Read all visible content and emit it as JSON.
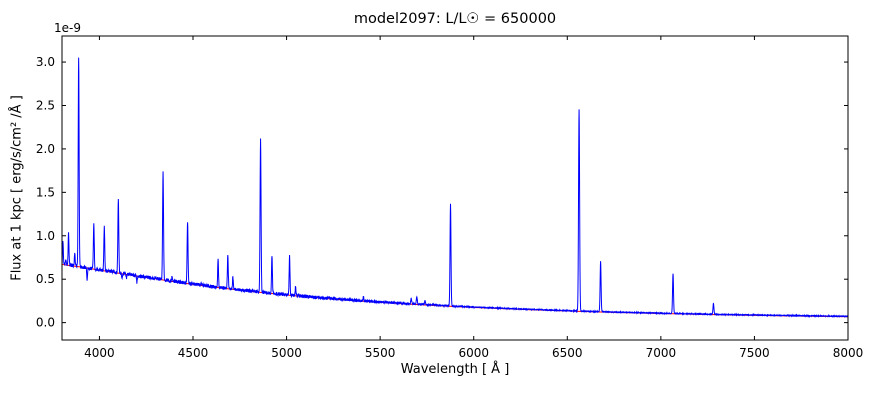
{
  "chart_data": {
    "type": "line",
    "title": "model2097: L/L☉ = 650000",
    "xlabel": "Wavelength [ Å ]",
    "ylabel": "Flux at 1 kpc [ erg/s/cm² /Å ]",
    "offset_text": "1e-9",
    "unit_note": "y values in units of 1e-9 erg/s/cm²/Å",
    "xlim": [
      3800,
      8000
    ],
    "ylim": [
      -0.2,
      3.3
    ],
    "xtick_values": [
      4000,
      4500,
      5000,
      5500,
      6000,
      6500,
      7000,
      7500,
      8000
    ],
    "xtick_labels": [
      "4000",
      "4500",
      "5000",
      "5500",
      "6000",
      "6500",
      "7000",
      "7500",
      "8000"
    ],
    "ytick_values": [
      0.0,
      0.5,
      1.0,
      1.5,
      2.0,
      2.5,
      3.0
    ],
    "ytick_labels": [
      "0.0",
      "0.5",
      "1.0",
      "1.5",
      "2.0",
      "2.5",
      "3.0"
    ],
    "legend": "none",
    "grid": "off",
    "frame_color": "#000000",
    "spectrum_color": "#0000ff",
    "continuum_color": "#ff0000",
    "continuum": [
      [
        3800,
        0.67
      ],
      [
        3900,
        0.64
      ],
      [
        4000,
        0.605
      ],
      [
        4100,
        0.57
      ],
      [
        4200,
        0.535
      ],
      [
        4300,
        0.505
      ],
      [
        4400,
        0.47
      ],
      [
        4500,
        0.44
      ],
      [
        4600,
        0.412
      ],
      [
        4700,
        0.386
      ],
      [
        4800,
        0.362
      ],
      [
        4900,
        0.34
      ],
      [
        5000,
        0.318
      ],
      [
        5100,
        0.298
      ],
      [
        5200,
        0.28
      ],
      [
        5300,
        0.263
      ],
      [
        5400,
        0.248
      ],
      [
        5500,
        0.233
      ],
      [
        5600,
        0.22
      ],
      [
        5700,
        0.208
      ],
      [
        5800,
        0.196
      ],
      [
        5900,
        0.185
      ],
      [
        6000,
        0.175
      ],
      [
        6100,
        0.166
      ],
      [
        6200,
        0.157
      ],
      [
        6300,
        0.149
      ],
      [
        6400,
        0.141
      ],
      [
        6500,
        0.134
      ],
      [
        6600,
        0.127
      ],
      [
        6700,
        0.121
      ],
      [
        6800,
        0.115
      ],
      [
        6900,
        0.11
      ],
      [
        7000,
        0.105
      ],
      [
        7100,
        0.1
      ],
      [
        7200,
        0.096
      ],
      [
        7300,
        0.091
      ],
      [
        7400,
        0.087
      ],
      [
        7500,
        0.084
      ],
      [
        7600,
        0.08
      ],
      [
        7700,
        0.077
      ],
      [
        7800,
        0.074
      ],
      [
        7900,
        0.071
      ],
      [
        8000,
        0.068
      ]
    ],
    "emission_lines": [
      {
        "wavelength": 3805,
        "peak": 0.95,
        "sigma": 2.0
      },
      {
        "wavelength": 3820,
        "peak": 0.72,
        "sigma": 2.0
      },
      {
        "wavelength": 3835,
        "peak": 1.02,
        "sigma": 2.2
      },
      {
        "wavelength": 3868,
        "peak": 0.8,
        "sigma": 2.0
      },
      {
        "wavelength": 3889,
        "peak": 3.06,
        "sigma": 2.4
      },
      {
        "wavelength": 3934,
        "peak": 0.48,
        "sigma": 2.0
      },
      {
        "wavelength": 3970,
        "peak": 1.12,
        "sigma": 2.4
      },
      {
        "wavelength": 4026,
        "peak": 1.1,
        "sigma": 2.4
      },
      {
        "wavelength": 4101,
        "peak": 1.4,
        "sigma": 2.5
      },
      {
        "wavelength": 4121,
        "peak": 0.52,
        "sigma": 2.0
      },
      {
        "wavelength": 4144,
        "peak": 0.5,
        "sigma": 2.0
      },
      {
        "wavelength": 4200,
        "peak": 0.46,
        "sigma": 2.0
      },
      {
        "wavelength": 4340,
        "peak": 1.72,
        "sigma": 2.5
      },
      {
        "wavelength": 4388,
        "peak": 0.52,
        "sigma": 2.0
      },
      {
        "wavelength": 4471,
        "peak": 1.15,
        "sigma": 2.4
      },
      {
        "wavelength": 4542,
        "peak": 0.44,
        "sigma": 2.0
      },
      {
        "wavelength": 4634,
        "peak": 0.72,
        "sigma": 2.2
      },
      {
        "wavelength": 4686,
        "peak": 0.76,
        "sigma": 2.4
      },
      {
        "wavelength": 4713,
        "peak": 0.52,
        "sigma": 2.0
      },
      {
        "wavelength": 4861,
        "peak": 2.1,
        "sigma": 2.6
      },
      {
        "wavelength": 4922,
        "peak": 0.77,
        "sigma": 2.2
      },
      {
        "wavelength": 5016,
        "peak": 0.76,
        "sigma": 2.2
      },
      {
        "wavelength": 5048,
        "peak": 0.42,
        "sigma": 2.0
      },
      {
        "wavelength": 5411,
        "peak": 0.3,
        "sigma": 2.2
      },
      {
        "wavelength": 5666,
        "peak": 0.27,
        "sigma": 2.5
      },
      {
        "wavelength": 5696,
        "peak": 0.29,
        "sigma": 2.5
      },
      {
        "wavelength": 5740,
        "peak": 0.25,
        "sigma": 2.2
      },
      {
        "wavelength": 5876,
        "peak": 1.36,
        "sigma": 2.5
      },
      {
        "wavelength": 6563,
        "peak": 2.45,
        "sigma": 2.8
      },
      {
        "wavelength": 6678,
        "peak": 0.7,
        "sigma": 2.5
      },
      {
        "wavelength": 7065,
        "peak": 0.56,
        "sigma": 2.5
      },
      {
        "wavelength": 7281,
        "peak": 0.22,
        "sigma": 2.5
      }
    ],
    "noise": {
      "amp_blue_region": 0.02,
      "amp_red_region": 0.005,
      "bias": 0.004
    }
  }
}
